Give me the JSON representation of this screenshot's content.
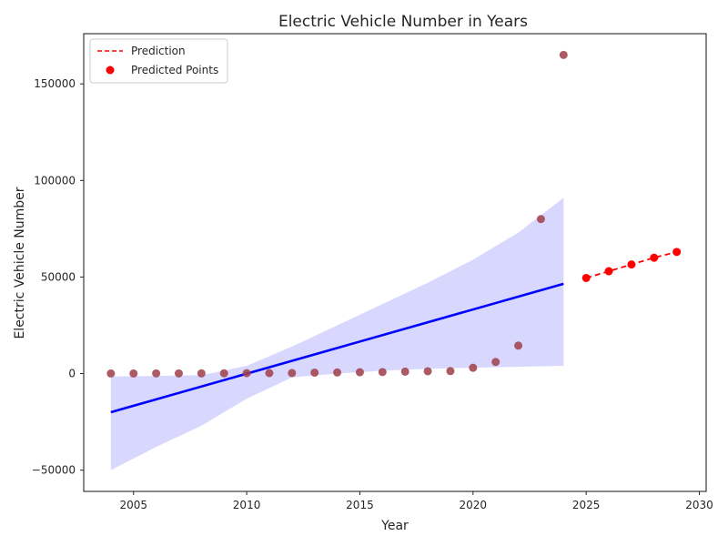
{
  "chart_data": {
    "type": "scatter",
    "title": "Electric Vehicle Number in Years",
    "xlabel": "Year",
    "ylabel": "Electric Vehicle Number",
    "xlim": [
      2002.8,
      2030.3
    ],
    "ylim": [
      -61000,
      176000
    ],
    "grid": false,
    "legend_placement": "top-left",
    "xticks": [
      2005,
      2010,
      2015,
      2020,
      2025,
      2030
    ],
    "yticks": [
      -50000,
      0,
      50000,
      100000,
      150000
    ],
    "xtick_labels": [
      "2005",
      "2010",
      "2015",
      "2020",
      "2025",
      "2030"
    ],
    "ytick_labels": [
      "−50000",
      "0",
      "50000",
      "100000",
      "150000"
    ],
    "observed": {
      "color": "#a0434f",
      "x": [
        2004,
        2005,
        2006,
        2007,
        2008,
        2009,
        2010,
        2011,
        2012,
        2013,
        2014,
        2015,
        2016,
        2017,
        2018,
        2019,
        2020,
        2021,
        2022,
        2023,
        2024
      ],
      "y": [
        50,
        60,
        80,
        100,
        120,
        150,
        200,
        250,
        300,
        500,
        600,
        700,
        800,
        1000,
        1200,
        1300,
        3000,
        6000,
        14500,
        80000,
        165000
      ]
    },
    "regression": {
      "color": "#0000ff",
      "x": [
        2004,
        2024
      ],
      "y": [
        -20000,
        46500
      ]
    },
    "confidence_band": {
      "color": "#d8d8ff",
      "x": [
        2004,
        2006,
        2008,
        2010,
        2012,
        2014,
        2016,
        2018,
        2020,
        2022,
        2024
      ],
      "upper": [
        -1500,
        -1200,
        -800,
        4000,
        14000,
        25000,
        36000,
        47000,
        59000,
        73000,
        91000
      ],
      "lower": [
        -50000,
        -38000,
        -27000,
        -13000,
        -2000,
        0,
        1500,
        2500,
        3000,
        3500,
        4000
      ]
    },
    "series": [
      {
        "name": "Prediction",
        "style": "dashed-line",
        "color": "#ff0000",
        "x": [
          2025,
          2026,
          2027,
          2028,
          2029
        ],
        "y": [
          49500,
          53000,
          56500,
          60000,
          63000
        ]
      },
      {
        "name": "Predicted Points",
        "style": "points",
        "color": "#ff0000",
        "x": [
          2025,
          2026,
          2027,
          2028,
          2029
        ],
        "y": [
          49500,
          53000,
          56500,
          60000,
          63000
        ]
      }
    ]
  }
}
